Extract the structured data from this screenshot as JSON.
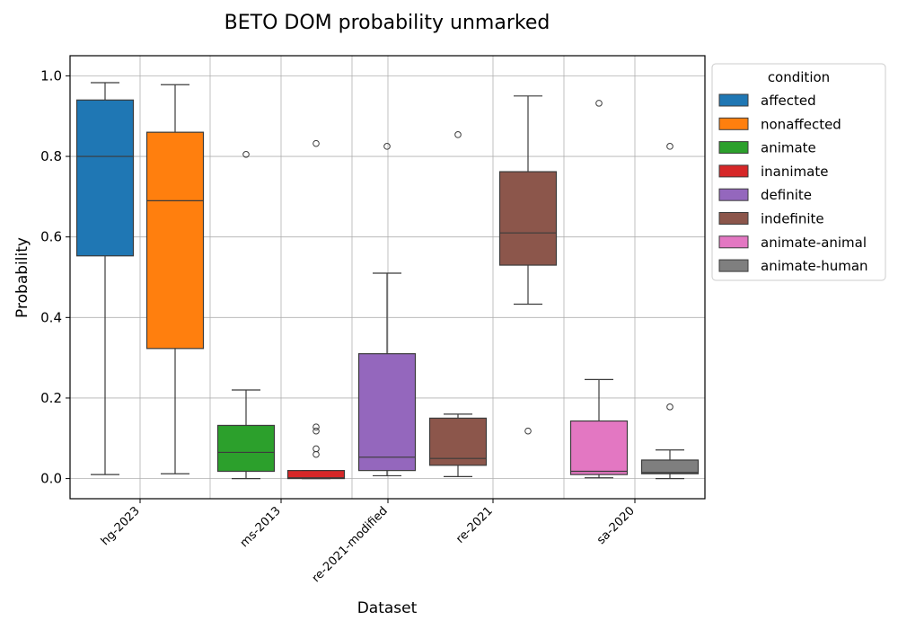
{
  "chart_data": {
    "type": "box",
    "title": "BETO DOM probability unmarked",
    "xlabel": "Dataset",
    "ylabel": "Probability",
    "ylim": [
      -0.05,
      1.05
    ],
    "yticks": [
      0.0,
      0.2,
      0.4,
      0.6,
      0.8,
      1.0
    ],
    "ytick_labels": [
      "0.0",
      "0.2",
      "0.4",
      "0.6",
      "0.8",
      "1.0"
    ],
    "grid": true,
    "legend_position": "outside-top-right",
    "legend_title": "condition",
    "categories": [
      "hg-2023",
      "ms-2013",
      "re-2021-modified",
      "re-2021",
      "sa-2020"
    ],
    "conditions": [
      {
        "name": "affected",
        "color": "#1f77b4"
      },
      {
        "name": "nonaffected",
        "color": "#ff7f0e"
      },
      {
        "name": "animate",
        "color": "#2ca02c"
      },
      {
        "name": "inanimate",
        "color": "#d62728"
      },
      {
        "name": "definite",
        "color": "#9467bd"
      },
      {
        "name": "indefinite",
        "color": "#8c564b"
      },
      {
        "name": "animate-animal",
        "color": "#e377c2"
      },
      {
        "name": "animate-human",
        "color": "#7f7f7f"
      }
    ],
    "boxes": [
      {
        "dataset": "hg-2023",
        "condition": "affected",
        "whislo": 0.01,
        "q1": 0.553,
        "med": 0.8,
        "q3": 0.94,
        "whishi": 0.983,
        "fliers": []
      },
      {
        "dataset": "hg-2023",
        "condition": "nonaffected",
        "whislo": 0.012,
        "q1": 0.323,
        "med": 0.69,
        "q3": 0.86,
        "whishi": 0.978,
        "fliers": []
      },
      {
        "dataset": "ms-2013",
        "condition": "animate",
        "whislo": 0.0,
        "q1": 0.018,
        "med": 0.065,
        "q3": 0.132,
        "whishi": 0.22,
        "fliers": [
          0.805
        ]
      },
      {
        "dataset": "ms-2013",
        "condition": "inanimate",
        "whislo": 0.0,
        "q1": 0.0,
        "med": 0.002,
        "q3": 0.02,
        "whishi": 0.02,
        "fliers": [
          0.06,
          0.074,
          0.118,
          0.128,
          0.832
        ]
      },
      {
        "dataset": "re-2021-modified",
        "condition": "definite",
        "whislo": 0.007,
        "q1": 0.02,
        "med": 0.053,
        "q3": 0.31,
        "whishi": 0.51,
        "fliers": [
          0.825
        ]
      },
      {
        "dataset": "re-2021-modified",
        "condition": "indefinite",
        "whislo": 0.005,
        "q1": 0.033,
        "med": 0.05,
        "q3": 0.15,
        "whishi": 0.16,
        "fliers": [
          0.854
        ]
      },
      {
        "dataset": "re-2021",
        "condition": "indefinite",
        "whislo": 0.433,
        "q1": 0.53,
        "med": 0.61,
        "q3": 0.762,
        "whishi": 0.95,
        "fliers": [
          0.118
        ]
      },
      {
        "dataset": "sa-2020",
        "condition": "animate-animal",
        "whislo": 0.002,
        "q1": 0.01,
        "med": 0.018,
        "q3": 0.143,
        "whishi": 0.246,
        "fliers": [
          0.932
        ]
      },
      {
        "dataset": "sa-2020",
        "condition": "animate-human",
        "whislo": 0.0,
        "q1": 0.012,
        "med": 0.015,
        "q3": 0.046,
        "whishi": 0.071,
        "fliers": [
          0.178,
          0.825
        ]
      }
    ]
  }
}
